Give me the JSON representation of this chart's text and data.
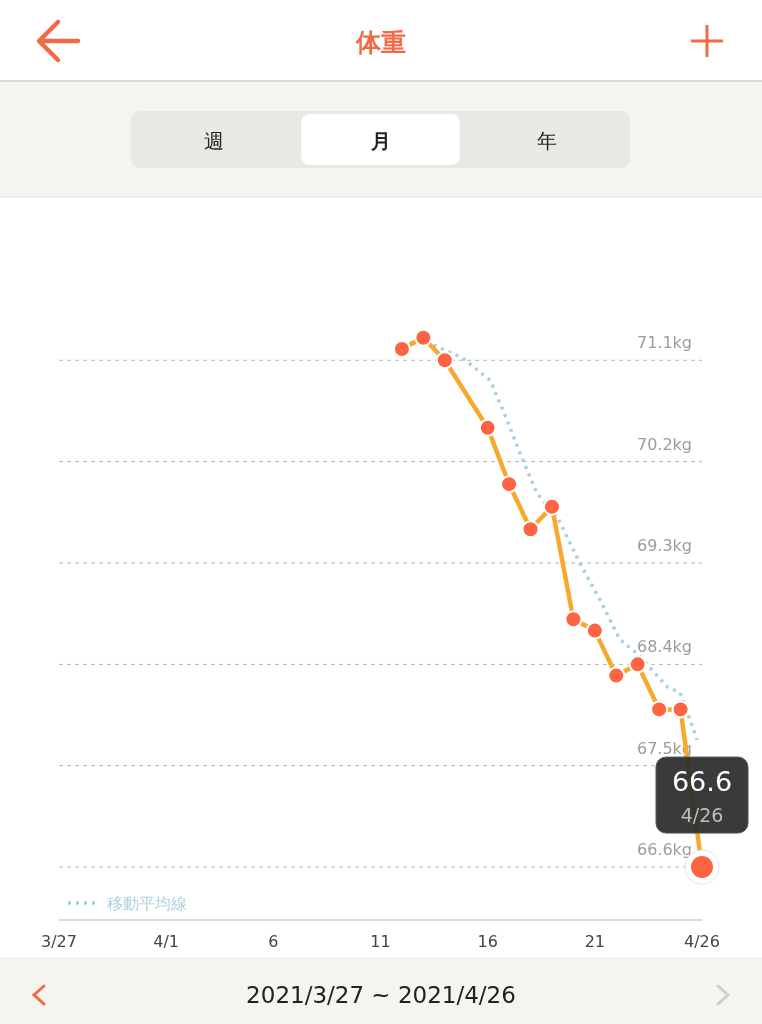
{
  "chart_data": {
    "type": "line",
    "title": "体重",
    "subtitle": "2021/3/27 ~ 2021/4/26",
    "annotations": [
      "週",
      "月",
      "年",
      {
        "text": "66.6",
        "x": "2021-04-26",
        "y": 66.6
      },
      {
        "text": "4/26",
        "x": "2021-04-26",
        "y": 66.6
      }
    ],
    "series": [
      {
        "color": "#f7a82f",
        "marker": "circle",
        "line_style": "solid",
        "x": [
          "2021-04-12",
          "2021-04-13",
          "2021-04-14",
          "2021-04-16",
          "2021-04-17",
          "2021-04-18",
          "2021-04-19",
          "2021-04-20",
          "2021-04-21",
          "2021-04-22",
          "2021-04-23",
          "2021-04-24",
          "2021-04-25",
          "2021-04-26"
        ],
        "values": [
          71.2,
          71.3,
          71.1,
          70.5,
          70.0,
          69.6,
          69.8,
          68.8,
          68.7,
          68.3,
          68.4,
          68.0,
          68.0,
          66.6
        ],
        "colors": [
          "#ff6442",
          "#ff6442",
          "#ff6442",
          "#ff6442",
          "#ff6442",
          "#ff6442",
          "#ff6442",
          "#ff6442",
          "#ff6442",
          "#ff6442",
          "#ff6442",
          "#ff6442",
          "#ff6442",
          "#ff6442"
        ]
      },
      {
        "name": "移動平均線",
        "color": "#a9d0e0",
        "marker": "none",
        "line_style": "dotted",
        "x": [
          "2021-04-12T09:00",
          "2021-04-13T07:30",
          "2021-04-14T20:00",
          "2021-04-16T03:00",
          "2021-04-16T17:00",
          "2021-04-17T12:00",
          "2021-04-18T07:00",
          "2021-04-19T06:00",
          "2021-04-20T07:00",
          "2021-04-21T06:00",
          "2021-04-22T04:00",
          "2021-04-22T23:00",
          "2021-04-24T09:00",
          "2021-04-24T23:30",
          "2021-04-25T18:30"
        ],
        "values": [
          71.26,
          71.25,
          71.12,
          70.92,
          70.66,
          70.28,
          69.92,
          69.71,
          69.3,
          68.97,
          68.62,
          68.5,
          68.2,
          68.15,
          67.73
        ]
      }
    ],
    "xlim": [
      "2021-03-27",
      "2021-04-26"
    ],
    "xticks": [
      {
        "value": "2021-03-27",
        "label": "3/27"
      },
      {
        "value": "2021-04-01",
        "label": "4/1"
      },
      {
        "value": "2021-04-06",
        "label": "6"
      },
      {
        "value": "2021-04-11",
        "label": "11"
      },
      {
        "value": "2021-04-16",
        "label": "16"
      },
      {
        "value": "2021-04-21",
        "label": "21"
      },
      {
        "value": "2021-04-26",
        "label": "4/26"
      }
    ],
    "ylim": [
      66.13,
      72.55
    ],
    "yticks": [
      {
        "value": 66.6,
        "label": "66.6kg"
      },
      {
        "value": 67.5,
        "label": "67.5kg"
      },
      {
        "value": 68.4,
        "label": "68.4kg"
      },
      {
        "value": 69.3,
        "label": "69.3kg"
      },
      {
        "value": 70.2,
        "label": "70.2kg"
      },
      {
        "value": 71.1,
        "label": "71.1kg"
      }
    ],
    "grid": "y",
    "legend": "bottom left"
  }
}
